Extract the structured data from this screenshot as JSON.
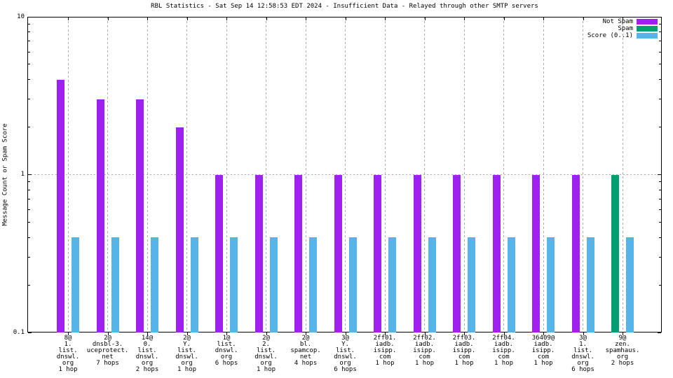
{
  "title": "RBL Statistics - Sat Sep 14 12:58:53 EDT 2024 - Insufficient Data - Relayed through other SMTP servers",
  "y_axis": {
    "label": "Message Count or Spam Score",
    "ticks": [
      {
        "label": "10",
        "value": 10
      },
      {
        "label": "1",
        "value": 1
      },
      {
        "label": "0.1",
        "value": 0.1
      }
    ]
  },
  "legend": {
    "position": "top-right",
    "entries": [
      {
        "label": "Not Spam",
        "color": "#a020f0"
      },
      {
        "label": "Spam",
        "color": "#009e73"
      },
      {
        "label": "Score (0..1)",
        "color": "#56b4e9"
      }
    ]
  },
  "colors": {
    "not_spam": "#a020f0",
    "spam": "#009e73",
    "score": "#56b4e9",
    "grid": "#ababab",
    "border": "#000000"
  },
  "chart_data": {
    "type": "bar",
    "title": "RBL Statistics - Sat Sep 14 12:58:53 EDT 2024 - Insufficient Data - Relayed through other SMTP servers",
    "xlabel": "",
    "ylabel": "Message Count or Spam Score",
    "yscale": "log",
    "ylim": [
      0.1,
      10
    ],
    "grid": true,
    "legend_position": "top-right",
    "categories": [
      [
        "8@",
        "1.",
        "list.",
        "dnswl.",
        "org",
        "1 hop"
      ],
      [
        "2@",
        "dnsbl-3.",
        "uceprotect.",
        "net",
        "7 hops"
      ],
      [
        "14@",
        "0.",
        "list.",
        "dnswl.",
        "org",
        "2 hops"
      ],
      [
        "2@",
        "Y.",
        "list.",
        "dnswl.",
        "org",
        "1 hop"
      ],
      [
        "1@",
        "list.",
        "dnswl.",
        "org",
        "6 hops"
      ],
      [
        "2@",
        "2.",
        "list.",
        "dnswl.",
        "org",
        "1 hop"
      ],
      [
        "2@",
        "bl.",
        "spamcop.",
        "net",
        "4 hops"
      ],
      [
        "3@",
        "Y.",
        "list.",
        "dnswl.",
        "org",
        "6 hops"
      ],
      [
        "2ff01.",
        "iadb.",
        "isipp.",
        "com",
        "1 hop"
      ],
      [
        "2ff02.",
        "iadb.",
        "isipp.",
        "com",
        "1 hop"
      ],
      [
        "2ff03.",
        "iadb.",
        "isipp.",
        "com",
        "1 hop"
      ],
      [
        "2ff04.",
        "iadb.",
        "isipp.",
        "com",
        "1 hop"
      ],
      [
        "36409@",
        "iadb.",
        "isipp.",
        "com",
        "1 hop"
      ],
      [
        "3@",
        "1.",
        "list.",
        "dnswl.",
        "org",
        "6 hops"
      ],
      [
        "9@",
        "zen.",
        "spamhaus.",
        "org",
        "2 hops"
      ]
    ],
    "series": [
      {
        "name": "Not Spam",
        "color": "#a020f0",
        "slot": "left",
        "values": [
          4,
          3,
          3,
          2,
          1,
          1,
          1,
          1,
          1,
          1,
          1,
          1,
          1,
          1,
          null
        ]
      },
      {
        "name": "Spam",
        "color": "#009e73",
        "slot": "left",
        "values": [
          null,
          null,
          null,
          null,
          null,
          null,
          null,
          null,
          null,
          null,
          null,
          null,
          null,
          null,
          1
        ]
      },
      {
        "name": "Score (0..1)",
        "color": "#56b4e9",
        "slot": "right",
        "values": [
          0.4,
          0.4,
          0.4,
          0.4,
          0.4,
          0.4,
          0.4,
          0.4,
          0.4,
          0.4,
          0.4,
          0.4,
          0.4,
          0.4,
          0.4
        ]
      }
    ]
  }
}
